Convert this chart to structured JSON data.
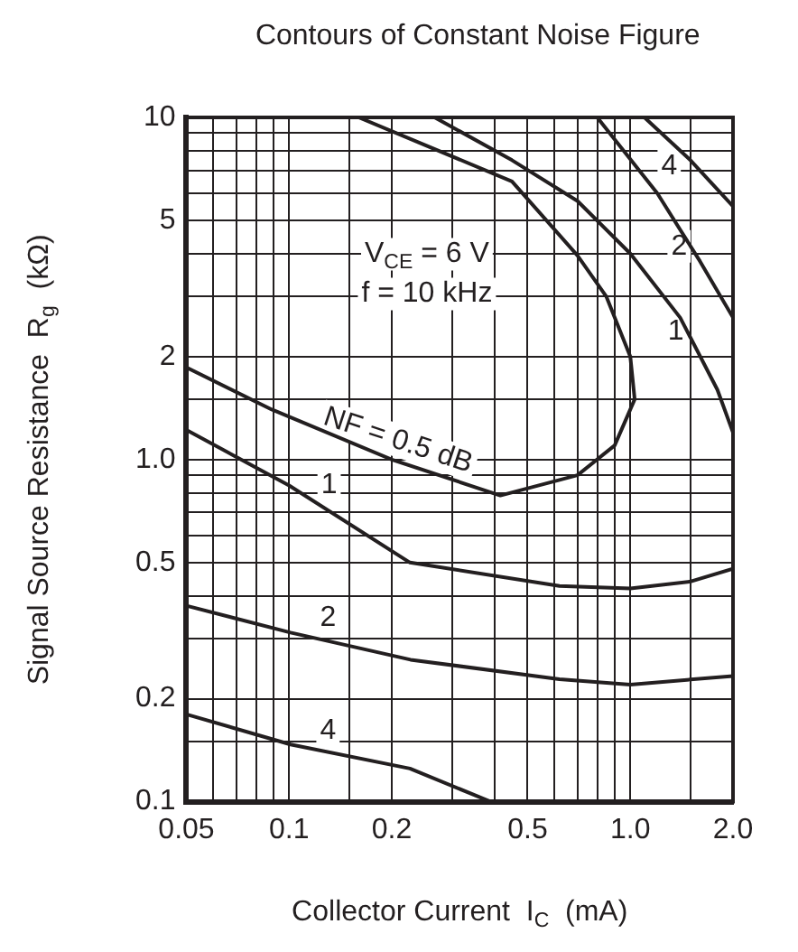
{
  "chart_data": {
    "type": "line",
    "title": "Contours of Constant Noise Figure",
    "xlabel": "Collector Current  I$_{C}$  (mA)",
    "ylabel": "Signal Source Resistance  R$_{g}$  (kΩ)",
    "log": "xy",
    "grid": true,
    "marker": "none",
    "line_style": "solid",
    "legend": false,
    "xlim": [
      0.05,
      2
    ],
    "ylim": [
      0.1,
      10
    ],
    "xticks": [
      0.05,
      {
        "value": 0.06,
        "label": null
      },
      {
        "value": 0.07,
        "label": null
      },
      {
        "value": 0.08,
        "label": null
      },
      {
        "value": 0.09,
        "label": null
      },
      0.1,
      {
        "value": 0.15,
        "label": null
      },
      0.2,
      {
        "value": 0.3,
        "label": null
      },
      {
        "value": 0.4,
        "label": null
      },
      0.5,
      {
        "value": 0.6,
        "label": null
      },
      {
        "value": 0.7,
        "label": null
      },
      {
        "value": 0.8,
        "label": null
      },
      {
        "value": 0.9,
        "label": null
      },
      {
        "value": 1,
        "label": "1.0"
      },
      {
        "value": 1.5,
        "label": null
      },
      {
        "value": 2,
        "label": "2.0"
      }
    ],
    "yticks": [
      0.1,
      {
        "value": 0.15,
        "label": null
      },
      0.2,
      {
        "value": 0.3,
        "label": null
      },
      {
        "value": 0.4,
        "label": null
      },
      0.5,
      {
        "value": 0.6,
        "label": null
      },
      {
        "value": 0.7,
        "label": null
      },
      {
        "value": 0.8,
        "label": null
      },
      {
        "value": 0.9,
        "label": null
      },
      {
        "value": 1,
        "label": "1.0"
      },
      {
        "value": 1.5,
        "label": null
      },
      2,
      {
        "value": 3,
        "label": null
      },
      {
        "value": 4,
        "label": null
      },
      5,
      {
        "value": 6,
        "label": null
      },
      {
        "value": 7,
        "label": null
      },
      {
        "value": 8,
        "label": null
      },
      {
        "value": 9,
        "label": null
      },
      10
    ],
    "series": [
      {
        "color": "#231f20",
        "x": [
          0.05,
          0.089,
          0.2,
          0.416,
          0.7,
          0.9,
          1.03,
          1.0,
          0.85,
          0.7,
          0.45,
          0.16
        ],
        "values": [
          1.86,
          1.4,
          1.0,
          0.785,
          0.9,
          1.1,
          1.5,
          2.0,
          3.0,
          3.95,
          6.5,
          10
        ]
      },
      {
        "color": "#231f20",
        "x": [
          0.267,
          0.45,
          0.7,
          1.0,
          1.4,
          1.8,
          2.0,
          null,
          0.05,
          0.1,
          0.226,
          0.62,
          1.0,
          1.5,
          2.0
        ],
        "values": [
          10,
          7.5,
          5.7,
          4.0,
          2.6,
          1.6,
          1.2,
          null,
          1.22,
          0.84,
          0.5,
          0.427,
          0.42,
          0.44,
          0.48
        ]
      },
      {
        "color": "#231f20",
        "x": [
          0.8,
          1.2,
          1.6,
          2.0,
          null,
          0.05,
          0.101,
          0.227,
          0.62,
          1.0,
          2.0
        ],
        "values": [
          10,
          6,
          3.8,
          2.6,
          null,
          0.374,
          0.312,
          0.26,
          0.228,
          0.22,
          0.233
        ]
      },
      {
        "color": "#231f20",
        "x": [
          1.1,
          1.5,
          2.0,
          null,
          0.05,
          0.101,
          0.226,
          0.39
        ],
        "values": [
          10,
          7.5,
          5.5,
          null,
          0.18,
          0.147,
          0.125,
          0.1
        ]
      }
    ],
    "annotations": [
      "V$_{CE}$ = 6 V",
      "f = 10 kHz",
      {
        "text": "NF = 0.5 dB",
        "x": 0.2,
        "y": 1.0
      },
      {
        "text": "1",
        "x": 0.131,
        "y": 0.84
      },
      {
        "text": "2",
        "x": 0.13,
        "y": 0.345
      },
      {
        "text": "4",
        "x": 0.13,
        "y": 0.161
      },
      {
        "text": "1",
        "x": 1.36,
        "y": 2.37
      },
      {
        "text": "2",
        "x": 1.39,
        "y": 4.2
      },
      {
        "text": "4",
        "x": 1.3,
        "y": 7.2
      }
    ]
  }
}
